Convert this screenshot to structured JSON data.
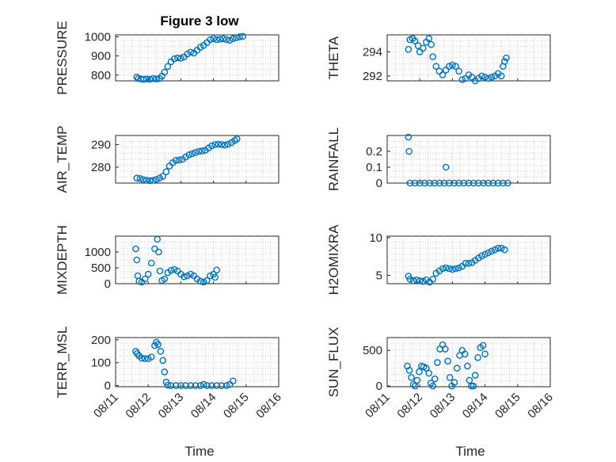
{
  "figure": {
    "title": "Figure 3 low",
    "marker_color": "#0072BD"
  },
  "chart_data": [
    {
      "type": "scatter",
      "name": "pressure",
      "ylabel": "PRESSURE",
      "ylim": [
        770,
        1010
      ],
      "yticks": [
        800,
        900,
        1000
      ],
      "xticks": [],
      "xlim": [
        0,
        5
      ],
      "points": [
        [
          0.65,
          790
        ],
        [
          0.7,
          782
        ],
        [
          0.78,
          780
        ],
        [
          0.85,
          778
        ],
        [
          0.95,
          780
        ],
        [
          1.05,
          778
        ],
        [
          1.15,
          782
        ],
        [
          1.25,
          780
        ],
        [
          1.35,
          782
        ],
        [
          1.42,
          795
        ],
        [
          1.5,
          815
        ],
        [
          1.6,
          845
        ],
        [
          1.7,
          870
        ],
        [
          1.8,
          885
        ],
        [
          1.9,
          890
        ],
        [
          2.0,
          888
        ],
        [
          2.1,
          895
        ],
        [
          2.2,
          910
        ],
        [
          2.3,
          920
        ],
        [
          2.4,
          915
        ],
        [
          2.5,
          930
        ],
        [
          2.6,
          945
        ],
        [
          2.7,
          955
        ],
        [
          2.8,
          970
        ],
        [
          2.9,
          985
        ],
        [
          3.0,
          990
        ],
        [
          3.1,
          985
        ],
        [
          3.2,
          988
        ],
        [
          3.3,
          990
        ],
        [
          3.4,
          985
        ],
        [
          3.5,
          982
        ],
        [
          3.6,
          990
        ],
        [
          3.7,
          995
        ],
        [
          3.8,
          1000
        ],
        [
          3.9,
          1002
        ]
      ]
    },
    {
      "type": "scatter",
      "name": "theta",
      "ylabel": "THETA",
      "ylim": [
        291.6,
        295.4
      ],
      "yticks": [
        292,
        294
      ],
      "xticks": [],
      "xlim": [
        0,
        5
      ],
      "points": [
        [
          0.65,
          294.2
        ],
        [
          0.7,
          295.0
        ],
        [
          0.78,
          295.1
        ],
        [
          0.85,
          294.9
        ],
        [
          0.95,
          294.5
        ],
        [
          1.0,
          294.0
        ],
        [
          1.1,
          294.3
        ],
        [
          1.2,
          294.8
        ],
        [
          1.28,
          295.1
        ],
        [
          1.35,
          294.6
        ],
        [
          1.4,
          293.6
        ],
        [
          1.5,
          292.8
        ],
        [
          1.6,
          292.4
        ],
        [
          1.7,
          292.1
        ],
        [
          1.8,
          292.5
        ],
        [
          1.9,
          292.8
        ],
        [
          2.0,
          292.9
        ],
        [
          2.1,
          292.8
        ],
        [
          2.2,
          292.4
        ],
        [
          2.3,
          291.7
        ],
        [
          2.4,
          291.8
        ],
        [
          2.5,
          292.1
        ],
        [
          2.6,
          291.9
        ],
        [
          2.7,
          291.6
        ],
        [
          2.8,
          291.8
        ],
        [
          2.9,
          292.0
        ],
        [
          3.0,
          291.9
        ],
        [
          3.1,
          291.8
        ],
        [
          3.2,
          291.9
        ],
        [
          3.3,
          292.0
        ],
        [
          3.4,
          292.2
        ],
        [
          3.5,
          292.0
        ],
        [
          3.55,
          292.8
        ],
        [
          3.6,
          293.2
        ],
        [
          3.65,
          293.5
        ]
      ]
    },
    {
      "type": "scatter",
      "name": "air_temp",
      "ylabel": "AIR_TEMP",
      "ylim": [
        273,
        294
      ],
      "yticks": [
        280,
        290
      ],
      "xticks": [],
      "xlim": [
        0,
        5
      ],
      "points": [
        [
          0.65,
          275.2
        ],
        [
          0.75,
          275.0
        ],
        [
          0.85,
          274.5
        ],
        [
          0.95,
          274.2
        ],
        [
          1.05,
          274.0
        ],
        [
          1.15,
          274.2
        ],
        [
          1.25,
          274.6
        ],
        [
          1.35,
          275.2
        ],
        [
          1.45,
          276.0
        ],
        [
          1.55,
          278.0
        ],
        [
          1.65,
          280.5
        ],
        [
          1.75,
          282.0
        ],
        [
          1.85,
          283.0
        ],
        [
          1.95,
          283.2
        ],
        [
          2.05,
          283.5
        ],
        [
          2.15,
          284.5
        ],
        [
          2.25,
          285.5
        ],
        [
          2.35,
          286.0
        ],
        [
          2.45,
          286.5
        ],
        [
          2.55,
          287.0
        ],
        [
          2.65,
          287.2
        ],
        [
          2.75,
          287.5
        ],
        [
          2.85,
          288.5
        ],
        [
          2.95,
          289.5
        ],
        [
          3.05,
          290.0
        ],
        [
          3.15,
          290.2
        ],
        [
          3.25,
          290.0
        ],
        [
          3.35,
          289.8
        ],
        [
          3.45,
          290.2
        ],
        [
          3.55,
          290.8
        ],
        [
          3.65,
          291.8
        ],
        [
          3.72,
          292.5
        ]
      ]
    },
    {
      "type": "scatter",
      "name": "rainfall",
      "ylabel": "RAINFALL",
      "ylim": [
        0,
        0.3
      ],
      "yticks": [
        0,
        0.1,
        0.2
      ],
      "xticks": [],
      "xlim": [
        0,
        5
      ],
      "points": [
        [
          0.65,
          0.29
        ],
        [
          0.67,
          0.2
        ],
        [
          1.8,
          0.1
        ],
        [
          0.7,
          0
        ],
        [
          0.85,
          0
        ],
        [
          1.0,
          0
        ],
        [
          1.15,
          0
        ],
        [
          1.3,
          0
        ],
        [
          1.45,
          0
        ],
        [
          1.6,
          0
        ],
        [
          1.75,
          0
        ],
        [
          1.9,
          0
        ],
        [
          2.05,
          0
        ],
        [
          2.2,
          0
        ],
        [
          2.35,
          0
        ],
        [
          2.5,
          0
        ],
        [
          2.65,
          0
        ],
        [
          2.8,
          0
        ],
        [
          2.95,
          0
        ],
        [
          3.1,
          0
        ],
        [
          3.25,
          0
        ],
        [
          3.4,
          0
        ],
        [
          3.55,
          0
        ],
        [
          3.7,
          0
        ]
      ]
    },
    {
      "type": "scatter",
      "name": "mixdepth",
      "ylabel": "MIXDEPTH",
      "ylim": [
        0,
        1500
      ],
      "yticks": [
        0,
        500,
        1000
      ],
      "xticks": [],
      "xlim": [
        0,
        5
      ],
      "points": [
        [
          0.62,
          1100
        ],
        [
          0.65,
          750
        ],
        [
          0.68,
          250
        ],
        [
          0.72,
          80
        ],
        [
          0.8,
          50
        ],
        [
          0.9,
          150
        ],
        [
          1.0,
          300
        ],
        [
          1.1,
          650
        ],
        [
          1.2,
          1100
        ],
        [
          1.28,
          1400
        ],
        [
          1.32,
          1000
        ],
        [
          1.36,
          400
        ],
        [
          1.42,
          100
        ],
        [
          1.5,
          150
        ],
        [
          1.6,
          350
        ],
        [
          1.7,
          420
        ],
        [
          1.8,
          450
        ],
        [
          1.9,
          400
        ],
        [
          2.0,
          300
        ],
        [
          2.1,
          220
        ],
        [
          2.2,
          250
        ],
        [
          2.3,
          300
        ],
        [
          2.4,
          250
        ],
        [
          2.5,
          150
        ],
        [
          2.6,
          80
        ],
        [
          2.7,
          50
        ],
        [
          2.8,
          100
        ],
        [
          2.9,
          250
        ],
        [
          3.0,
          300
        ],
        [
          3.05,
          200
        ],
        [
          3.1,
          430
        ]
      ]
    },
    {
      "type": "scatter",
      "name": "h2omixra",
      "ylabel": "H2OMIXRA",
      "ylim": [
        3.9,
        10.2
      ],
      "yticks": [
        5,
        10
      ],
      "xticks": [],
      "xlim": [
        0,
        5
      ],
      "points": [
        [
          0.65,
          4.9
        ],
        [
          0.7,
          4.5
        ],
        [
          0.8,
          4.3
        ],
        [
          0.9,
          4.4
        ],
        [
          1.0,
          4.3
        ],
        [
          1.1,
          4.2
        ],
        [
          1.2,
          4.4
        ],
        [
          1.3,
          4.1
        ],
        [
          1.4,
          4.5
        ],
        [
          1.5,
          5.3
        ],
        [
          1.6,
          5.6
        ],
        [
          1.7,
          5.9
        ],
        [
          1.8,
          6.0
        ],
        [
          1.9,
          5.9
        ],
        [
          2.0,
          5.8
        ],
        [
          2.1,
          5.9
        ],
        [
          2.2,
          6.0
        ],
        [
          2.3,
          6.2
        ],
        [
          2.4,
          6.6
        ],
        [
          2.5,
          6.6
        ],
        [
          2.6,
          6.7
        ],
        [
          2.7,
          7.0
        ],
        [
          2.8,
          7.3
        ],
        [
          2.9,
          7.6
        ],
        [
          3.0,
          7.8
        ],
        [
          3.1,
          8.0
        ],
        [
          3.2,
          8.2
        ],
        [
          3.3,
          8.4
        ],
        [
          3.4,
          8.6
        ],
        [
          3.5,
          8.6
        ],
        [
          3.6,
          8.4
        ]
      ]
    },
    {
      "type": "scatter",
      "name": "terr_msl",
      "ylabel": "TERR_MSL",
      "ylim": [
        -5,
        210
      ],
      "yticks": [
        0,
        100,
        200
      ],
      "xticks": [],
      "xlim": [
        0,
        5
      ],
      "points": [
        [
          0.62,
          150
        ],
        [
          0.66,
          140
        ],
        [
          0.72,
          130
        ],
        [
          0.8,
          120
        ],
        [
          0.9,
          118
        ],
        [
          1.0,
          118
        ],
        [
          1.1,
          125
        ],
        [
          1.2,
          175
        ],
        [
          1.25,
          190
        ],
        [
          1.3,
          180
        ],
        [
          1.38,
          150
        ],
        [
          1.45,
          110
        ],
        [
          1.5,
          60
        ],
        [
          1.55,
          15
        ],
        [
          1.6,
          2
        ],
        [
          1.7,
          0
        ],
        [
          1.85,
          0
        ],
        [
          2.0,
          0
        ],
        [
          2.15,
          0
        ],
        [
          2.3,
          0
        ],
        [
          2.45,
          0
        ],
        [
          2.6,
          0
        ],
        [
          2.7,
          5
        ],
        [
          2.8,
          0
        ],
        [
          2.95,
          0
        ],
        [
          3.1,
          0
        ],
        [
          3.25,
          0
        ],
        [
          3.4,
          0
        ],
        [
          3.5,
          5
        ],
        [
          3.6,
          20
        ]
      ]
    },
    {
      "type": "scatter",
      "name": "sun_flux",
      "ylabel": "SUN_FLUX",
      "ylim": [
        -10,
        680
      ],
      "yticks": [
        0,
        500
      ],
      "xticks": [],
      "xlim": [
        0,
        5
      ],
      "points": [
        [
          0.62,
          280
        ],
        [
          0.68,
          220
        ],
        [
          0.74,
          120
        ],
        [
          0.8,
          20
        ],
        [
          0.86,
          0
        ],
        [
          0.92,
          80
        ],
        [
          0.98,
          200
        ],
        [
          1.05,
          280
        ],
        [
          1.12,
          270
        ],
        [
          1.2,
          250
        ],
        [
          1.28,
          180
        ],
        [
          1.34,
          40
        ],
        [
          1.4,
          0
        ],
        [
          1.46,
          100
        ],
        [
          1.54,
          330
        ],
        [
          1.62,
          520
        ],
        [
          1.7,
          580
        ],
        [
          1.78,
          520
        ],
        [
          1.86,
          350
        ],
        [
          1.92,
          120
        ],
        [
          1.98,
          0
        ],
        [
          2.06,
          50
        ],
        [
          2.14,
          250
        ],
        [
          2.22,
          430
        ],
        [
          2.3,
          500
        ],
        [
          2.38,
          450
        ],
        [
          2.46,
          280
        ],
        [
          2.52,
          80
        ],
        [
          2.58,
          0
        ],
        [
          2.64,
          0
        ],
        [
          2.7,
          150
        ],
        [
          2.78,
          400
        ],
        [
          2.86,
          540
        ],
        [
          2.94,
          570
        ],
        [
          3.0,
          450
        ]
      ]
    }
  ],
  "x_axis": {
    "xlabel": "Time",
    "tick_labels": [
      "08/11",
      "08/12",
      "08/13",
      "08/14",
      "08/15",
      "08/16"
    ]
  }
}
